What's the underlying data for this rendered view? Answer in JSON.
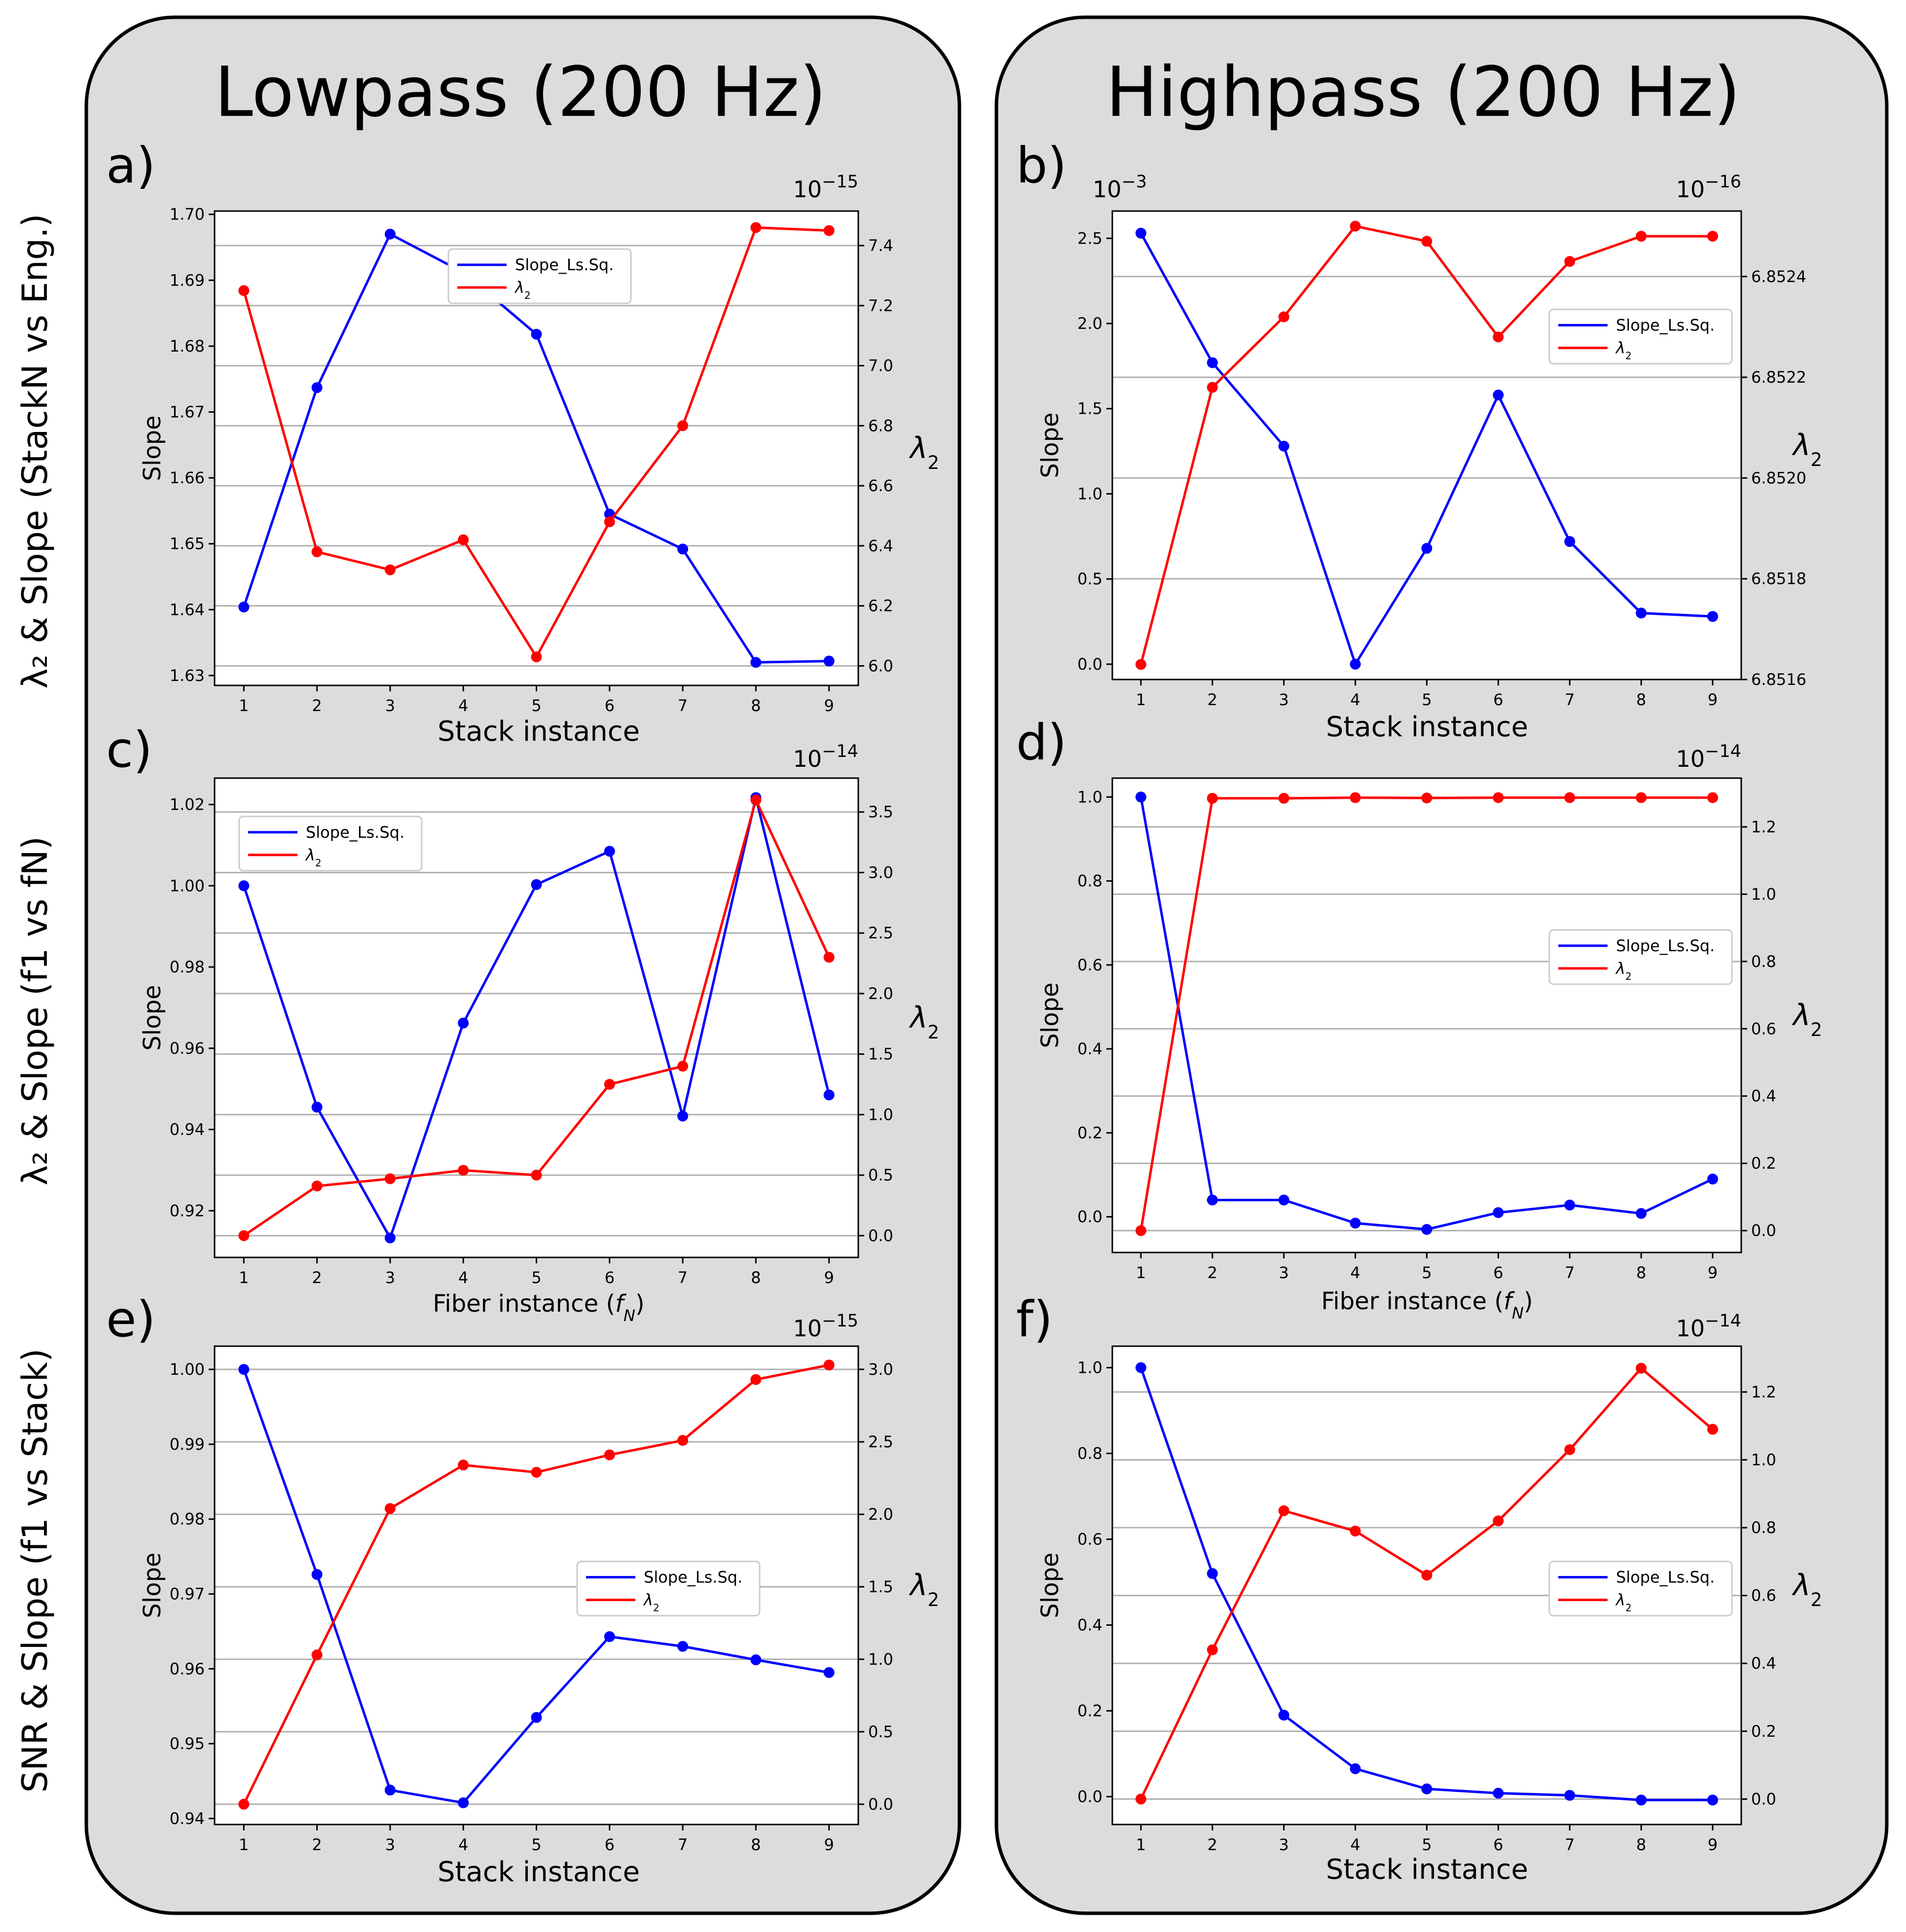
{
  "columns": {
    "left": "Lowpass (200 Hz)",
    "right": "Highpass (200 Hz)"
  },
  "rows": {
    "row1": "λ₂ & Slope (StackN vs Eng.)",
    "row2": "λ₂ & Slope (f1 vs fN)",
    "row3": "SNR & Slope (f1 vs Stack)"
  },
  "colors": {
    "slope": "#0000ff",
    "lambda": "#ff0000",
    "panel": "#dcdcdc"
  },
  "legend": {
    "slope": "Slope_Ls.Sq.",
    "lambda": "λ₂"
  },
  "chart_data": [
    {
      "id": "a",
      "panel_label": "a)",
      "type": "line",
      "xlabel": "Stack instance",
      "ylabel": "Slope",
      "y2label": "λ₂",
      "y1_exponent": "",
      "y2_exponent": "10-15",
      "x": [
        1,
        2,
        3,
        4,
        5,
        6,
        7,
        8,
        9
      ],
      "xlim": [
        0.6,
        9.4
      ],
      "legend_position": "upper-center",
      "y1": {
        "lim": [
          1.6285,
          1.7005
        ],
        "ticks": [
          1.63,
          1.64,
          1.65,
          1.66,
          1.67,
          1.68,
          1.69,
          1.7
        ],
        "ticklabels": [
          "1.63",
          "1.64",
          "1.65",
          "1.66",
          "1.67",
          "1.68",
          "1.69",
          "1.70"
        ]
      },
      "y2": {
        "lim": [
          5.935,
          7.515
        ],
        "ticks": [
          6.0,
          6.2,
          6.4,
          6.6,
          6.8,
          7.0,
          7.2,
          7.4
        ],
        "ticklabels": [
          "6.0",
          "6.2",
          "6.4",
          "6.6",
          "6.8",
          "7.0",
          "7.2",
          "7.4"
        ]
      },
      "series": [
        {
          "name": "Slope_Ls.Sq.",
          "axis": "y1",
          "color": "#0000ff",
          "values": [
            1.6404,
            1.6737,
            1.697,
            1.6912,
            1.6818,
            1.6545,
            1.6492,
            1.632,
            1.6322
          ]
        },
        {
          "name": "λ₂",
          "axis": "y2",
          "color": "#ff0000",
          "values": [
            7.25,
            6.38,
            6.32,
            6.42,
            6.03,
            6.48,
            6.8,
            7.46,
            7.45
          ]
        }
      ]
    },
    {
      "id": "b",
      "panel_label": "b)",
      "type": "line",
      "xlabel": "Stack instance",
      "ylabel": "Slope",
      "y2label": "λ₂",
      "y1_exponent": "10-3",
      "y2_exponent": "10-16",
      "x": [
        1,
        2,
        3,
        4,
        5,
        6,
        7,
        8,
        9
      ],
      "xlim": [
        0.6,
        9.4
      ],
      "legend_position": "upper-right",
      "y1": {
        "lim": [
          -0.09,
          2.66
        ],
        "ticks": [
          0.0,
          0.5,
          1.0,
          1.5,
          2.0,
          2.5
        ],
        "ticklabels": [
          "0.0",
          "0.5",
          "1.0",
          "1.5",
          "2.0",
          "2.5"
        ]
      },
      "y2": {
        "lim": [
          6.8516,
          6.85253
        ],
        "ticks": [
          6.8516,
          6.8518,
          6.852,
          6.8522,
          6.8524
        ],
        "ticklabels": [
          "6.8516",
          "6.8518",
          "6.8520",
          "6.8522",
          "6.8524"
        ]
      },
      "series": [
        {
          "name": "Slope_Ls.Sq.",
          "axis": "y1",
          "color": "#0000ff",
          "values": [
            2.53,
            1.77,
            1.28,
            0.0,
            0.68,
            1.58,
            0.72,
            0.3,
            0.28
          ]
        },
        {
          "name": "λ₂",
          "axis": "y2",
          "color": "#ff0000",
          "values": [
            6.85163,
            6.85218,
            6.85232,
            6.8525,
            6.85247,
            6.85228,
            6.85243,
            6.85248,
            6.85248
          ]
        }
      ]
    },
    {
      "id": "c",
      "panel_label": "c)",
      "type": "line",
      "xlabel": "Fiber instance (fN)",
      "ylabel": "Slope",
      "y2label": "λ₂",
      "y1_exponent": "",
      "y2_exponent": "10-14",
      "x": [
        1,
        2,
        3,
        4,
        5,
        6,
        7,
        8,
        9
      ],
      "xlim": [
        0.6,
        9.4
      ],
      "legend_position": "upper-left",
      "y1": {
        "lim": [
          0.9085,
          1.0265
        ],
        "ticks": [
          0.92,
          0.94,
          0.96,
          0.98,
          1.0,
          1.02
        ],
        "ticklabels": [
          "0.92",
          "0.94",
          "0.96",
          "0.98",
          "1.00",
          "1.02"
        ]
      },
      "y2": {
        "lim": [
          -0.18,
          3.78
        ],
        "ticks": [
          0.0,
          0.5,
          1.0,
          1.5,
          2.0,
          2.5,
          3.0,
          3.5
        ],
        "ticklabels": [
          "0.0",
          "0.5",
          "1.0",
          "1.5",
          "2.0",
          "2.5",
          "3.0",
          "3.5"
        ]
      },
      "series": [
        {
          "name": "Slope_Ls.Sq.",
          "axis": "y1",
          "color": "#0000ff",
          "values": [
            1.0,
            0.9455,
            0.9133,
            0.9662,
            1.0003,
            1.0085,
            0.9433,
            1.0217,
            0.9485
          ]
        },
        {
          "name": "λ₂",
          "axis": "y2",
          "color": "#ff0000",
          "values": [
            0.0,
            0.41,
            0.47,
            0.54,
            0.5,
            1.25,
            1.4,
            3.6,
            2.3
          ]
        }
      ]
    },
    {
      "id": "d",
      "panel_label": "d)",
      "type": "line",
      "xlabel": "Fiber instance (fN)",
      "ylabel": "Slope",
      "y2label": "λ₂",
      "y1_exponent": "",
      "y2_exponent": "10-14",
      "x": [
        1,
        2,
        3,
        4,
        5,
        6,
        7,
        8,
        9
      ],
      "xlim": [
        0.6,
        9.4
      ],
      "legend_position": "center-right",
      "y1": {
        "lim": [
          -0.085,
          1.045
        ],
        "ticks": [
          0.0,
          0.2,
          0.4,
          0.6,
          0.8,
          1.0
        ],
        "ticklabels": [
          "0.0",
          "0.2",
          "0.4",
          "0.6",
          "0.8",
          "1.0"
        ]
      },
      "y2": {
        "lim": [
          -0.065,
          1.345
        ],
        "ticks": [
          0.0,
          0.2,
          0.4,
          0.6,
          0.8,
          1.0,
          1.2
        ],
        "ticklabels": [
          "0.0",
          "0.2",
          "0.4",
          "0.6",
          "0.8",
          "1.0",
          "1.2"
        ]
      },
      "series": [
        {
          "name": "Slope_Ls.Sq.",
          "axis": "y1",
          "color": "#0000ff",
          "values": [
            1.0,
            0.04,
            0.04,
            -0.015,
            -0.03,
            0.01,
            0.028,
            0.008,
            0.09
          ]
        },
        {
          "name": "λ₂",
          "axis": "y2",
          "color": "#ff0000",
          "values": [
            0.0,
            1.285,
            1.285,
            1.287,
            1.286,
            1.287,
            1.287,
            1.287,
            1.287
          ]
        }
      ]
    },
    {
      "id": "e",
      "panel_label": "e)",
      "type": "line",
      "xlabel": "Stack instance",
      "ylabel": "Slope",
      "y2label": "λ₂",
      "y1_exponent": "",
      "y2_exponent": "10-15",
      "x": [
        1,
        2,
        3,
        4,
        5,
        6,
        7,
        8,
        9
      ],
      "xlim": [
        0.6,
        9.4
      ],
      "legend_position": "center-right",
      "y1": {
        "lim": [
          0.9392,
          1.0031
        ],
        "ticks": [
          0.94,
          0.95,
          0.96,
          0.97,
          0.98,
          0.99,
          1.0
        ],
        "ticklabels": [
          "0.94",
          "0.95",
          "0.96",
          "0.97",
          "0.98",
          "0.99",
          "1.00"
        ]
      },
      "y2": {
        "lim": [
          -0.14,
          3.16
        ],
        "ticks": [
          0.0,
          0.5,
          1.0,
          1.5,
          2.0,
          2.5,
          3.0
        ],
        "ticklabels": [
          "0.0",
          "0.5",
          "1.0",
          "1.5",
          "2.0",
          "2.5",
          "3.0"
        ]
      },
      "series": [
        {
          "name": "Slope_Ls.Sq.",
          "axis": "y1",
          "color": "#0000ff",
          "values": [
            1.0,
            0.9726,
            0.9438,
            0.9421,
            0.9535,
            0.9643,
            0.963,
            0.9612,
            0.9595
          ]
        },
        {
          "name": "λ₂",
          "axis": "y2",
          "color": "#ff0000",
          "values": [
            0.0,
            1.03,
            2.04,
            2.34,
            2.29,
            2.41,
            2.51,
            2.93,
            3.03
          ]
        }
      ]
    },
    {
      "id": "f",
      "panel_label": "f)",
      "type": "line",
      "xlabel": "Stack instance",
      "ylabel": "Slope",
      "y2label": "λ₂",
      "y1_exponent": "",
      "y2_exponent": "10-14",
      "x": [
        1,
        2,
        3,
        4,
        5,
        6,
        7,
        8,
        9
      ],
      "xlim": [
        0.6,
        9.4
      ],
      "legend_position": "center-right",
      "y1": {
        "lim": [
          -0.065,
          1.05
        ],
        "ticks": [
          0.0,
          0.2,
          0.4,
          0.6,
          0.8,
          1.0
        ],
        "ticklabels": [
          "0.0",
          "0.2",
          "0.4",
          "0.6",
          "0.8",
          "1.0"
        ]
      },
      "y2": {
        "lim": [
          -0.075,
          1.335
        ],
        "ticks": [
          0.0,
          0.2,
          0.4,
          0.6,
          0.8,
          1.0,
          1.2
        ],
        "ticklabels": [
          "0.0",
          "0.2",
          "0.4",
          "0.6",
          "0.8",
          "1.0",
          "1.2"
        ]
      },
      "series": [
        {
          "name": "Slope_Ls.Sq.",
          "axis": "y1",
          "color": "#0000ff",
          "values": [
            1.0,
            0.52,
            0.19,
            0.065,
            0.018,
            0.008,
            0.003,
            -0.008,
            -0.008
          ]
        },
        {
          "name": "λ₂",
          "axis": "y2",
          "color": "#ff0000",
          "values": [
            0.0,
            0.44,
            0.85,
            0.79,
            0.66,
            0.82,
            1.03,
            1.27,
            1.09
          ]
        }
      ]
    }
  ]
}
